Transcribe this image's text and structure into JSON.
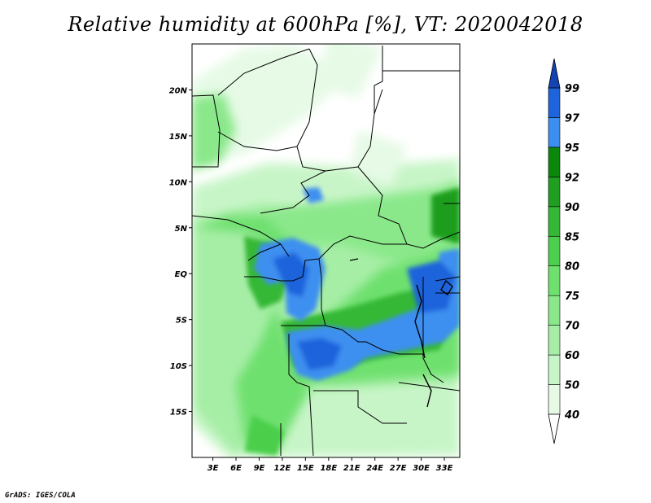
{
  "title": "Relative humidity at 600hPa [%], VT: 2020042018",
  "credit": "GrADS: IGES/COLA",
  "map": {
    "lat_labels": [
      {
        "lat": 20,
        "label": "20N"
      },
      {
        "lat": 15,
        "label": "15N"
      },
      {
        "lat": 10,
        "label": "10N"
      },
      {
        "lat": 5,
        "label": "5N"
      },
      {
        "lat": 0,
        "label": "EQ"
      },
      {
        "lat": -5,
        "label": "5S"
      },
      {
        "lat": -10,
        "label": "10S"
      },
      {
        "lat": -15,
        "label": "15S"
      }
    ],
    "lon_labels": [
      {
        "lon": 3,
        "label": "3E"
      },
      {
        "lon": 6,
        "label": "6E"
      },
      {
        "lon": 9,
        "label": "9E"
      },
      {
        "lon": 12,
        "label": "12E"
      },
      {
        "lon": 15,
        "label": "15E"
      },
      {
        "lon": 18,
        "label": "18E"
      },
      {
        "lon": 21,
        "label": "21E"
      },
      {
        "lon": 24,
        "label": "24E"
      },
      {
        "lon": 27,
        "label": "27E"
      },
      {
        "lon": 30,
        "label": "30E"
      },
      {
        "lon": 33,
        "label": "33E"
      }
    ],
    "lon_range": [
      0.3,
      35
    ],
    "lat_range": [
      -20,
      25
    ]
  },
  "colorbar": {
    "levels": [
      "40",
      "50",
      "60",
      "70",
      "75",
      "80",
      "85",
      "90",
      "92",
      "95",
      "97",
      "99"
    ],
    "colors": [
      "#ffffff",
      "#e6fae6",
      "#c8f5c8",
      "#a6eea6",
      "#8ae88a",
      "#6ee06e",
      "#4ccf4c",
      "#35b835",
      "#1f9e1f",
      "#0b870b",
      "#3c8ff0",
      "#1e64dc",
      "#1444b4"
    ]
  }
}
